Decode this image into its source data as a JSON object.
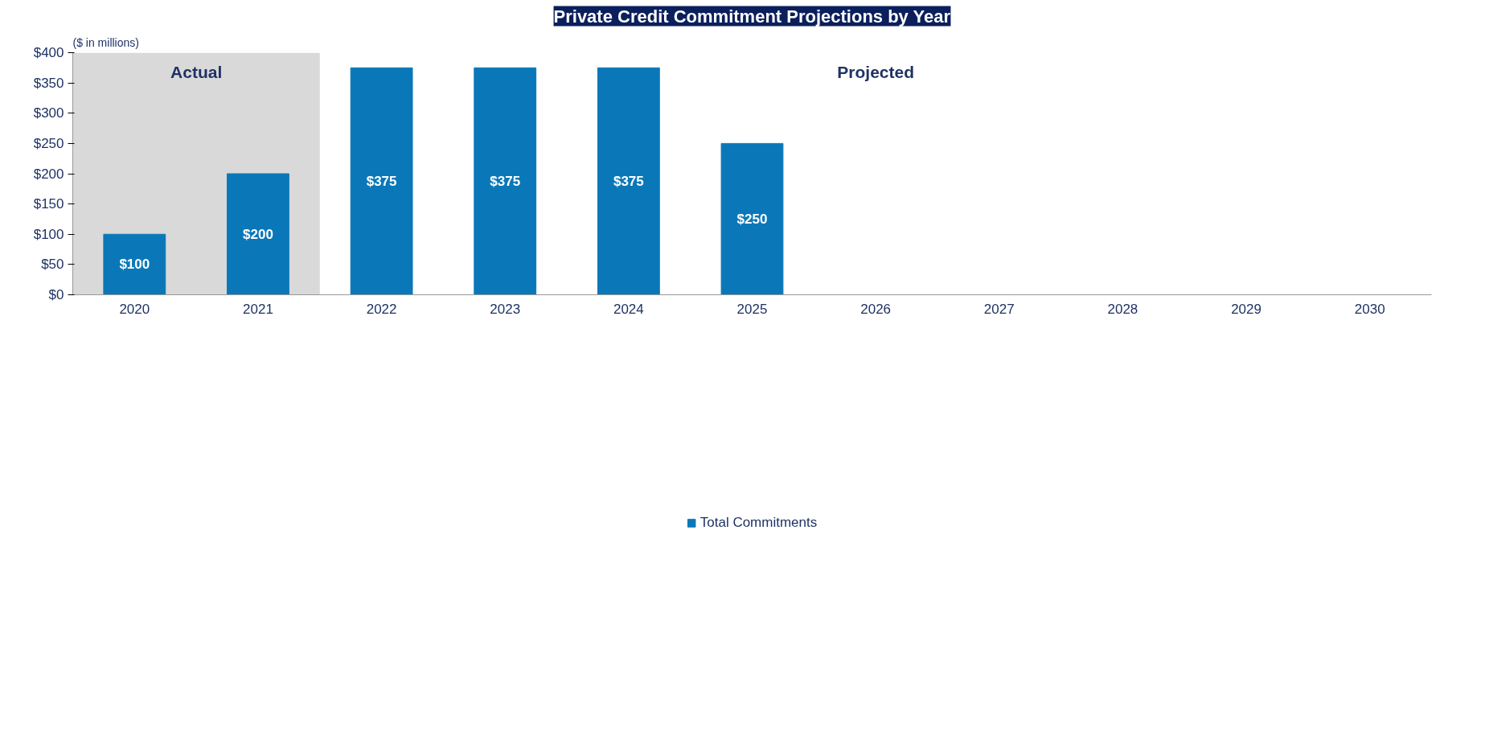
{
  "chart_data": {
    "type": "bar",
    "title": "Private Credit Commitment Projections by Year",
    "subtitle": "($ in millions)",
    "categories": [
      "2020",
      "2021",
      "2022",
      "2023",
      "2024",
      "2025",
      "2026",
      "2027",
      "2028",
      "2029",
      "2030"
    ],
    "series": [
      {
        "name": "Total Commitments",
        "color": "#0a78b8",
        "values": [
          100,
          200,
          375,
          375,
          375,
          250,
          0,
          0,
          0,
          0,
          0
        ],
        "value_labels": [
          "$100",
          "$200",
          "$375",
          "$375",
          "$375",
          "$250",
          null,
          null,
          null,
          null,
          null
        ]
      }
    ],
    "ylim": [
      0,
      400
    ],
    "yticks": [
      {
        "value": 0,
        "label": "$0"
      },
      {
        "value": 50,
        "label": "$50"
      },
      {
        "value": 100,
        "label": "$100"
      },
      {
        "value": 150,
        "label": "$150"
      },
      {
        "value": 200,
        "label": "$200"
      },
      {
        "value": 250,
        "label": "$250"
      },
      {
        "value": 300,
        "label": "$300"
      },
      {
        "value": 350,
        "label": "$350"
      },
      {
        "value": 400,
        "label": "$400"
      }
    ],
    "bands": [
      {
        "axis": "x",
        "from": "2020",
        "to": "2021",
        "label": "Actual",
        "color": "#d9d9d9"
      }
    ],
    "annotations": [
      "Projected"
    ],
    "grid": false,
    "legend": "bottom"
  }
}
